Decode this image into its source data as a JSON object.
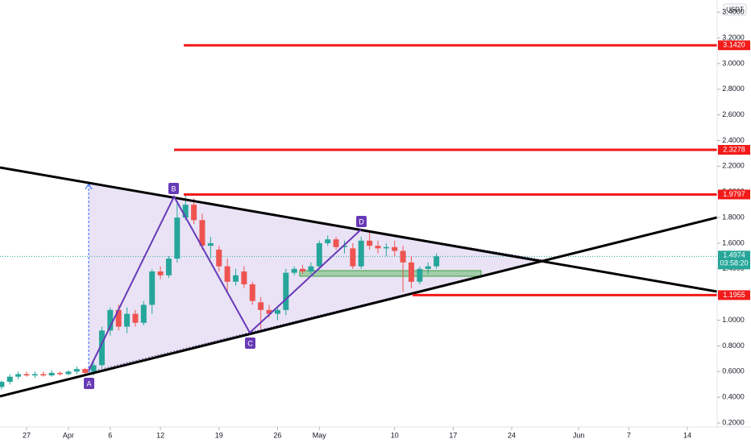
{
  "chart_data": {
    "type": "candlestick",
    "currency": "USDT",
    "x": [
      -3,
      -2,
      -1,
      0,
      1,
      2,
      3,
      4,
      5,
      6,
      7,
      8,
      9,
      10,
      11,
      12,
      13,
      14,
      15,
      16,
      17,
      18,
      19,
      20,
      21,
      22,
      23,
      24,
      25,
      26,
      27,
      28,
      29,
      30,
      31,
      32,
      33,
      34,
      35,
      36,
      37,
      38,
      39,
      40,
      41,
      42,
      43,
      44,
      45,
      46,
      47,
      48,
      49
    ],
    "open": [
      0.48,
      0.52,
      0.56,
      0.58,
      0.57,
      0.58,
      0.57,
      0.59,
      0.58,
      0.6,
      0.62,
      0.6,
      0.65,
      0.92,
      1.08,
      0.95,
      1.05,
      0.98,
      1.12,
      1.38,
      1.35,
      1.48,
      1.8,
      1.9,
      1.78,
      1.58,
      1.55,
      1.42,
      1.3,
      1.38,
      1.28,
      1.14,
      1.08,
      1.05,
      1.08,
      1.37,
      1.4,
      1.38,
      1.42,
      1.6,
      1.63,
      1.57,
      1.56,
      1.42,
      1.62,
      1.58,
      1.56,
      1.57,
      1.54,
      1.45,
      1.3,
      1.4,
      1.42
    ],
    "high": [
      0.53,
      0.58,
      0.6,
      0.6,
      0.6,
      0.6,
      0.61,
      0.6,
      0.61,
      0.64,
      0.63,
      0.68,
      0.95,
      1.1,
      1.12,
      1.1,
      1.08,
      1.15,
      1.4,
      1.42,
      1.5,
      1.92,
      1.97,
      1.95,
      1.83,
      1.65,
      1.58,
      1.48,
      1.4,
      1.42,
      1.3,
      1.18,
      1.12,
      1.1,
      1.4,
      1.42,
      1.43,
      1.45,
      1.62,
      1.66,
      1.65,
      1.62,
      1.6,
      1.65,
      1.7,
      1.62,
      1.6,
      1.62,
      1.58,
      1.5,
      1.42,
      1.45,
      1.52
    ],
    "low": [
      0.46,
      0.5,
      0.54,
      0.56,
      0.55,
      0.56,
      0.56,
      0.57,
      0.57,
      0.58,
      0.57,
      0.57,
      0.63,
      0.88,
      0.92,
      0.9,
      0.95,
      0.96,
      1.05,
      1.32,
      1.33,
      1.45,
      1.78,
      1.75,
      1.55,
      1.48,
      1.38,
      1.22,
      1.27,
      1.25,
      1.12,
      0.93,
      1.02,
      1.0,
      1.04,
      1.35,
      1.36,
      1.36,
      1.4,
      1.58,
      1.55,
      1.52,
      1.4,
      1.4,
      1.55,
      1.52,
      1.5,
      1.5,
      1.22,
      1.25,
      1.28,
      1.36,
      1.4
    ],
    "close": [
      0.52,
      0.56,
      0.58,
      0.57,
      0.58,
      0.57,
      0.59,
      0.58,
      0.6,
      0.62,
      0.59,
      0.65,
      0.92,
      1.08,
      0.95,
      1.05,
      0.98,
      1.12,
      1.38,
      1.35,
      1.48,
      1.8,
      1.9,
      1.78,
      1.58,
      1.6,
      1.42,
      1.3,
      1.35,
      1.28,
      1.15,
      1.08,
      1.05,
      1.08,
      1.37,
      1.4,
      1.38,
      1.42,
      1.6,
      1.63,
      1.57,
      1.58,
      1.42,
      1.62,
      1.58,
      1.56,
      1.57,
      1.54,
      1.45,
      1.3,
      1.4,
      1.42,
      1.4974
    ],
    "up_color": "#26a69a",
    "down_color": "#ef5350",
    "xlim": [
      -3.18,
      82.56
    ],
    "xticks": [
      {
        "value": 0,
        "label": "27"
      },
      {
        "value": 5,
        "label": "Apr"
      },
      {
        "value": 10,
        "label": "6"
      },
      {
        "value": 16,
        "label": "12"
      },
      {
        "value": 23,
        "label": "19"
      },
      {
        "value": 30,
        "label": "26"
      },
      {
        "value": 35,
        "label": "May"
      },
      {
        "value": 44,
        "label": "10"
      },
      {
        "value": 51,
        "label": "17"
      },
      {
        "value": 58,
        "label": "24"
      },
      {
        "value": 66,
        "label": "Jun"
      },
      {
        "value": 72,
        "label": "7"
      },
      {
        "value": 79,
        "label": "14"
      }
    ],
    "ylim": [
      0.169,
      3.495
    ],
    "yticks": [
      {
        "value": 0.2,
        "label": "0.2000"
      },
      {
        "value": 0.4,
        "label": "0.4000"
      },
      {
        "value": 0.6,
        "label": "0.6000"
      },
      {
        "value": 0.8,
        "label": "0.8000"
      },
      {
        "value": 1.0,
        "label": "1.0000"
      },
      {
        "value": 1.2,
        "label": "1.2000"
      },
      {
        "value": 1.4,
        "label": "1.4000"
      },
      {
        "value": 1.6,
        "label": "1.6000"
      },
      {
        "value": 1.8,
        "label": "1.8000"
      },
      {
        "value": 2.0,
        "label": "2.0000"
      },
      {
        "value": 2.2,
        "label": "2.2000"
      },
      {
        "value": 2.4,
        "label": "2.4000"
      },
      {
        "value": 2.6,
        "label": "2.6000"
      },
      {
        "value": 2.8,
        "label": "2.8000"
      },
      {
        "value": 3.0,
        "label": "3.0000"
      },
      {
        "value": 3.2,
        "label": "3.2000"
      },
      {
        "value": 3.4,
        "label": "3.4000"
      }
    ],
    "levels": [
      {
        "value": 3.142,
        "label": "3.1420"
      },
      {
        "value": 2.3278,
        "label": "2.3278"
      },
      {
        "value": 1.9797,
        "label": "1.9797"
      },
      {
        "value": 1.1955,
        "label": "1.1955"
      }
    ],
    "level_color": "#f21a1a",
    "last_price": {
      "value": 1.4974,
      "label": "1.4974"
    },
    "countdown": "03:58:20",
    "pattern_labels": [
      "A",
      "B",
      "C",
      "D"
    ]
  }
}
